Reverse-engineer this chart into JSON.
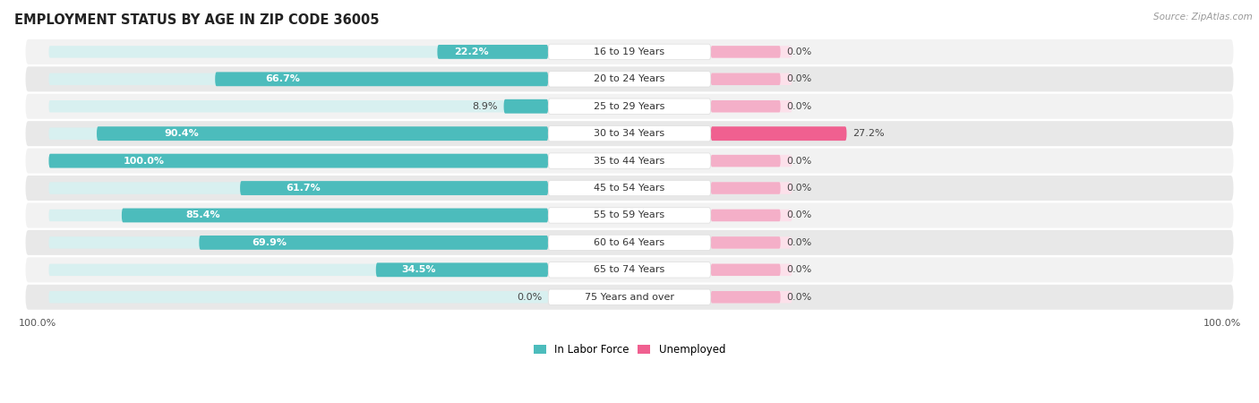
{
  "title": "EMPLOYMENT STATUS BY AGE IN ZIP CODE 36005",
  "source": "Source: ZipAtlas.com",
  "categories": [
    "16 to 19 Years",
    "20 to 24 Years",
    "25 to 29 Years",
    "30 to 34 Years",
    "35 to 44 Years",
    "45 to 54 Years",
    "55 to 59 Years",
    "60 to 64 Years",
    "65 to 74 Years",
    "75 Years and over"
  ],
  "in_labor_force": [
    22.2,
    66.7,
    8.9,
    90.4,
    100.0,
    61.7,
    85.4,
    69.9,
    34.5,
    0.0
  ],
  "unemployed": [
    0.0,
    0.0,
    0.0,
    27.2,
    0.0,
    0.0,
    0.0,
    0.0,
    0.0,
    0.0
  ],
  "labor_color": "#4cbcbc",
  "unemployed_color_full": "#f06090",
  "unemployed_color_zero": "#f4afc8",
  "track_labor_color": "#d8f0f0",
  "track_unemployed_color": "#fce0ea",
  "row_colors": [
    "#f2f2f2",
    "#e8e8e8"
  ],
  "title_fontsize": 10.5,
  "bar_label_fontsize": 8,
  "cat_label_fontsize": 8,
  "axis_max": 100.0,
  "small_bar_width": 12.0,
  "legend_labor_color": "#4cbcbc",
  "legend_unemployed_color": "#f06090"
}
